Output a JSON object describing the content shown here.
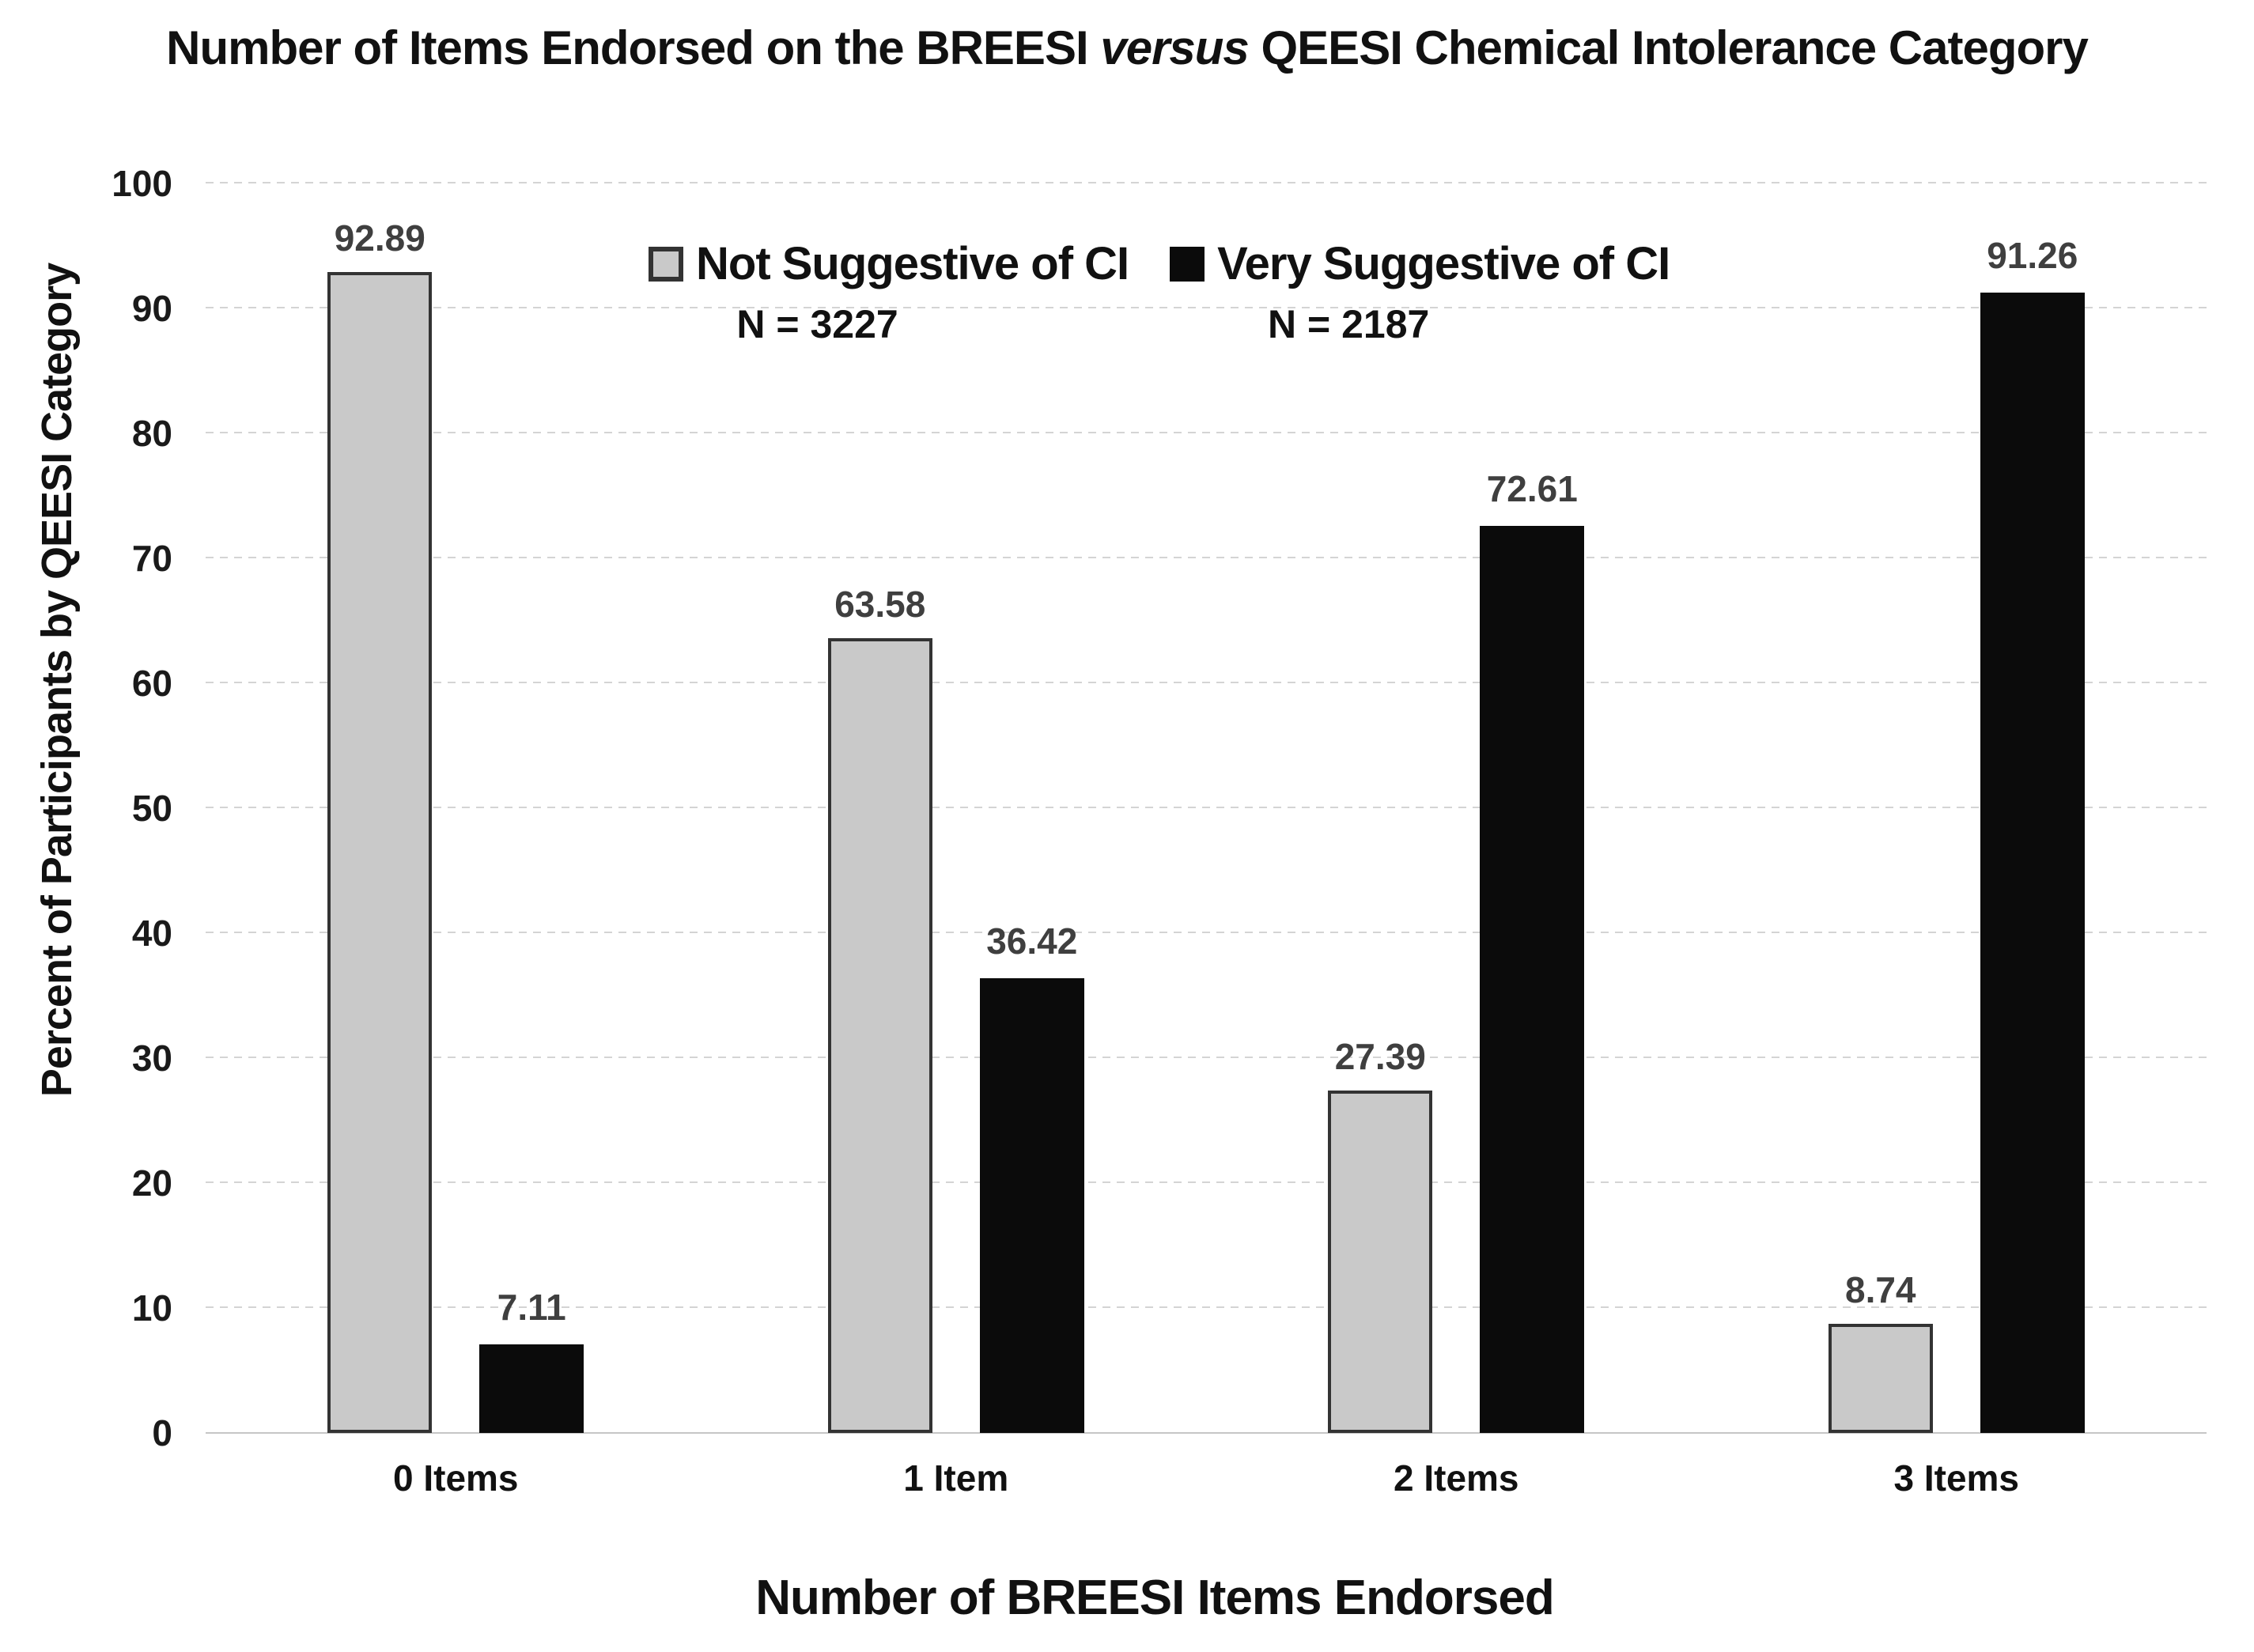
{
  "title": {
    "prefix": "Number of Items Endorsed on the BREESI",
    "versus": "versus",
    "suffix": "QEESI Chemical Intolerance Category"
  },
  "chart_data": {
    "type": "bar",
    "title": "Number of Items Endorsed on the BREESI versus QEESI Chemical Intolerance Category",
    "xlabel": "Number of BREESI Items Endorsed",
    "ylabel": "Percent of Participants by QEESI Category",
    "categories": [
      "0 Items",
      "1 Item",
      "2 Items",
      "3 Items"
    ],
    "series": [
      {
        "name": "Not Suggestive of CI",
        "n_label": "N = 3227",
        "color": "#c9c9c9",
        "border": "#333333",
        "values": [
          92.89,
          63.58,
          27.39,
          8.74
        ]
      },
      {
        "name": "Very Suggestive of CI",
        "n_label": "N = 2187",
        "color": "#0b0b0b",
        "border": "#0b0b0b",
        "values": [
          7.11,
          36.42,
          72.61,
          91.26
        ]
      }
    ],
    "ylim": [
      0,
      100
    ],
    "ytick_step": 10,
    "grid": true,
    "gridline_color": "#d4d4d4",
    "legend_position": "top-center-inside"
  }
}
